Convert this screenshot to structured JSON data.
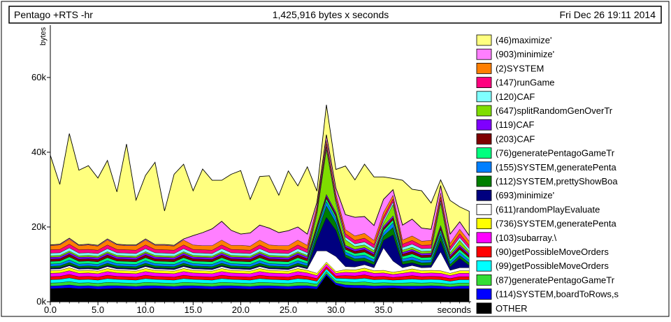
{
  "header": {
    "program": "Pentago +RTS -hr",
    "total": "1,425,916 bytes x seconds",
    "date": "Fri Dec 26 19:11 2014"
  },
  "chart_data": {
    "type": "area",
    "stacked": true,
    "ylabel": "bytes",
    "xlabel": "seconds",
    "xlim": [
      0,
      44.2
    ],
    "ylim": [
      0,
      74000
    ],
    "x_ticks": [
      {
        "value": 0,
        "label": "0.0"
      },
      {
        "value": 5,
        "label": "5.0"
      },
      {
        "value": 10,
        "label": "10.0"
      },
      {
        "value": 15,
        "label": "15.0"
      },
      {
        "value": 20,
        "label": "20.0"
      },
      {
        "value": 25,
        "label": "25.0"
      },
      {
        "value": 30,
        "label": "30.0"
      },
      {
        "value": 35,
        "label": "35.0"
      }
    ],
    "y_ticks": [
      {
        "value": 0,
        "label": "0k"
      },
      {
        "value": 20000,
        "label": "20k"
      },
      {
        "value": 40000,
        "label": "40k"
      },
      {
        "value": 60000,
        "label": "60k"
      }
    ],
    "legend_position": "right",
    "x": [
      0,
      1,
      2,
      3,
      4,
      5,
      6,
      7,
      8,
      9,
      10,
      11,
      12,
      13,
      14,
      15,
      16,
      17,
      18,
      19,
      20,
      21,
      22,
      23,
      24,
      25,
      26,
      27,
      28,
      29,
      30,
      31,
      32,
      33,
      34,
      35,
      36,
      37,
      38,
      39,
      40,
      41,
      42,
      43,
      44
    ],
    "series": [
      {
        "name": "OTHER",
        "color": "#000000",
        "values": [
          3500,
          3600,
          3700,
          3500,
          3600,
          3400,
          3500,
          3600,
          3500,
          3400,
          3500,
          3600,
          3500,
          3400,
          3500,
          3600,
          3500,
          3400,
          3500,
          3600,
          3500,
          3400,
          3500,
          3600,
          3500,
          3400,
          3500,
          3600,
          3400,
          7000,
          4500,
          3800,
          3700,
          3600,
          3500,
          3600,
          3700,
          3500,
          3400,
          3500,
          3600,
          3500,
          3400,
          3500,
          3500
        ]
      },
      {
        "name": "(114)SYSTEM,boardToRows,s",
        "color": "#0000ff",
        "values": [
          700,
          700,
          800,
          700,
          700,
          700,
          800,
          700,
          700,
          700,
          800,
          700,
          700,
          700,
          800,
          700,
          700,
          700,
          800,
          700,
          700,
          700,
          800,
          700,
          700,
          700,
          800,
          700,
          600,
          500,
          500,
          700,
          700,
          800,
          700,
          700,
          600,
          700,
          800,
          700,
          700,
          700,
          600,
          700,
          700
        ]
      },
      {
        "name": "(87)generatePentagoGameTr",
        "color": "#33dd33",
        "values": [
          800,
          800,
          900,
          800,
          800,
          800,
          900,
          800,
          800,
          800,
          900,
          800,
          800,
          800,
          900,
          800,
          800,
          800,
          900,
          800,
          800,
          800,
          900,
          800,
          800,
          800,
          900,
          800,
          700,
          600,
          600,
          800,
          800,
          900,
          800,
          800,
          700,
          800,
          900,
          800,
          800,
          800,
          700,
          800,
          800
        ]
      },
      {
        "name": "(99)getPossibleMoveOrders",
        "color": "#00ffff",
        "values": [
          900,
          900,
          1000,
          900,
          900,
          900,
          1000,
          900,
          900,
          900,
          1000,
          900,
          900,
          900,
          1000,
          900,
          900,
          900,
          1000,
          900,
          900,
          900,
          1000,
          900,
          900,
          900,
          1000,
          900,
          800,
          700,
          700,
          900,
          900,
          1000,
          900,
          900,
          800,
          900,
          1000,
          900,
          900,
          900,
          800,
          900,
          900
        ]
      },
      {
        "name": "(90)getPossibleMoveOrders",
        "color": "#ff0000",
        "values": [
          800,
          800,
          900,
          800,
          800,
          800,
          900,
          800,
          800,
          800,
          900,
          800,
          800,
          800,
          900,
          800,
          800,
          800,
          900,
          800,
          800,
          800,
          900,
          800,
          800,
          800,
          900,
          800,
          700,
          600,
          600,
          800,
          800,
          900,
          800,
          800,
          700,
          800,
          900,
          800,
          800,
          800,
          700,
          800,
          800
        ]
      },
      {
        "name": "(103)subarray.\\",
        "color": "#ff00ff",
        "values": [
          900,
          900,
          1000,
          900,
          900,
          900,
          1000,
          900,
          900,
          900,
          1000,
          900,
          900,
          900,
          1000,
          900,
          900,
          900,
          1000,
          900,
          900,
          900,
          1000,
          900,
          900,
          900,
          1000,
          900,
          800,
          700,
          700,
          900,
          900,
          1000,
          900,
          900,
          800,
          900,
          1000,
          900,
          900,
          900,
          800,
          900,
          900
        ]
      },
      {
        "name": "(736)SYSTEM,generatePenta",
        "color": "#ffff00",
        "values": [
          700,
          700,
          800,
          700,
          700,
          700,
          800,
          700,
          700,
          700,
          800,
          700,
          700,
          700,
          800,
          700,
          700,
          700,
          800,
          700,
          700,
          700,
          800,
          700,
          700,
          700,
          800,
          700,
          600,
          500,
          500,
          700,
          700,
          800,
          700,
          700,
          600,
          700,
          800,
          700,
          700,
          700,
          600,
          700,
          700
        ]
      },
      {
        "name": "(611)randomPlayEvaluate",
        "color": "#ffffff",
        "values": [
          400,
          400,
          500,
          400,
          400,
          400,
          500,
          400,
          400,
          400,
          500,
          400,
          400,
          400,
          500,
          400,
          400,
          400,
          500,
          400,
          400,
          400,
          500,
          400,
          400,
          400,
          500,
          400,
          6000,
          3000,
          4000,
          800,
          800,
          900,
          800,
          6000,
          3000,
          800,
          900,
          800,
          800,
          5000,
          800,
          800,
          800
        ]
      },
      {
        "name": "(693)minimize'",
        "color": "#00007f",
        "values": [
          300,
          300,
          300,
          300,
          300,
          300,
          300,
          300,
          300,
          300,
          300,
          300,
          300,
          300,
          300,
          300,
          300,
          300,
          300,
          300,
          300,
          300,
          300,
          300,
          300,
          300,
          300,
          300,
          3000,
          9000,
          7000,
          2500,
          1500,
          1000,
          800,
          2000,
          7000,
          900,
          700,
          600,
          600,
          3000,
          900,
          2500,
          600
        ]
      },
      {
        "name": "(112)SYSTEM,prettyShowBoa",
        "color": "#007f00",
        "values": [
          500,
          500,
          600,
          500,
          500,
          500,
          600,
          500,
          500,
          500,
          600,
          500,
          500,
          500,
          600,
          500,
          500,
          500,
          600,
          500,
          500,
          500,
          600,
          500,
          500,
          500,
          600,
          500,
          1500,
          3000,
          2000,
          700,
          700,
          800,
          700,
          1200,
          2000,
          700,
          800,
          700,
          700,
          1500,
          700,
          800,
          700
        ]
      },
      {
        "name": "(155)SYSTEM,generatePenta",
        "color": "#007fff",
        "values": [
          600,
          600,
          700,
          600,
          600,
          600,
          700,
          600,
          600,
          600,
          700,
          600,
          600,
          600,
          700,
          600,
          600,
          600,
          700,
          600,
          600,
          600,
          700,
          600,
          600,
          600,
          700,
          600,
          800,
          1200,
          1000,
          700,
          700,
          800,
          700,
          800,
          1200,
          700,
          800,
          700,
          700,
          800,
          700,
          800,
          700
        ]
      },
      {
        "name": "(76)generatePentagoGameTr",
        "color": "#00ff7f",
        "values": [
          700,
          700,
          800,
          700,
          700,
          700,
          800,
          700,
          700,
          700,
          800,
          700,
          700,
          700,
          800,
          700,
          700,
          700,
          800,
          700,
          700,
          700,
          800,
          700,
          700,
          700,
          800,
          700,
          600,
          800,
          700,
          700,
          700,
          800,
          700,
          700,
          800,
          700,
          800,
          700,
          700,
          700,
          700,
          800,
          700
        ]
      },
      {
        "name": "(203)CAF",
        "color": "#7f0000",
        "values": [
          600,
          600,
          700,
          600,
          600,
          600,
          700,
          600,
          600,
          600,
          700,
          600,
          600,
          600,
          700,
          600,
          600,
          600,
          700,
          600,
          600,
          600,
          700,
          600,
          600,
          600,
          700,
          600,
          500,
          600,
          600,
          600,
          600,
          700,
          600,
          600,
          600,
          600,
          700,
          600,
          600,
          600,
          600,
          700,
          600
        ]
      },
      {
        "name": "(119)CAF",
        "color": "#7f00ff",
        "values": [
          500,
          500,
          500,
          500,
          500,
          500,
          500,
          500,
          500,
          500,
          500,
          500,
          500,
          500,
          500,
          500,
          500,
          500,
          500,
          500,
          500,
          500,
          500,
          500,
          500,
          500,
          500,
          500,
          400,
          500,
          500,
          500,
          500,
          500,
          500,
          500,
          500,
          500,
          500,
          500,
          500,
          500,
          500,
          500,
          500
        ]
      },
      {
        "name": "(647)splitRandomGenOverTr",
        "color": "#7fdd00",
        "values": [
          400,
          400,
          400,
          400,
          400,
          400,
          400,
          400,
          400,
          400,
          400,
          400,
          400,
          400,
          400,
          400,
          400,
          400,
          400,
          400,
          400,
          400,
          400,
          400,
          400,
          400,
          400,
          400,
          3000,
          12000,
          2500,
          1500,
          800,
          700,
          600,
          900,
          3000,
          600,
          600,
          600,
          600,
          6000,
          600,
          1200,
          600
        ]
      },
      {
        "name": "(120)CAF",
        "color": "#7fffff",
        "values": [
          700,
          700,
          800,
          700,
          700,
          700,
          800,
          700,
          700,
          700,
          800,
          700,
          700,
          700,
          800,
          700,
          700,
          700,
          800,
          700,
          700,
          700,
          800,
          700,
          700,
          700,
          800,
          700,
          600,
          700,
          700,
          700,
          700,
          800,
          700,
          700,
          700,
          700,
          800,
          700,
          700,
          700,
          700,
          800,
          700
        ]
      },
      {
        "name": "(147)runGame",
        "color": "#ff007f",
        "values": [
          900,
          900,
          1000,
          900,
          900,
          900,
          1000,
          900,
          900,
          900,
          1000,
          900,
          900,
          900,
          1000,
          900,
          900,
          900,
          1000,
          900,
          900,
          900,
          1000,
          900,
          900,
          900,
          1000,
          900,
          700,
          800,
          800,
          900,
          900,
          1000,
          900,
          900,
          800,
          900,
          1000,
          900,
          900,
          900,
          800,
          1000,
          900
        ]
      },
      {
        "name": "(2)SYSTEM",
        "color": "#ff7f00",
        "values": [
          1100,
          1200,
          1300,
          1100,
          1200,
          1100,
          1300,
          1200,
          1100,
          1200,
          1300,
          1100,
          1200,
          1100,
          1300,
          1200,
          1100,
          1200,
          1300,
          1100,
          1200,
          1100,
          1300,
          1200,
          1100,
          1200,
          1300,
          1100,
          900,
          1000,
          1000,
          1100,
          1200,
          1300,
          1100,
          1200,
          1000,
          1100,
          1200,
          1100,
          1200,
          1100,
          1000,
          1200,
          1100
        ]
      },
      {
        "name": "(903)minimize'",
        "color": "#ff7fff",
        "values": [
          200,
          200,
          300,
          200,
          200,
          200,
          300,
          200,
          200,
          200,
          300,
          200,
          200,
          200,
          300,
          2500,
          3500,
          4500,
          5000,
          4000,
          3000,
          3500,
          4000,
          4500,
          3500,
          4000,
          3500,
          3000,
          1000,
          1500,
          1500,
          4000,
          5000,
          4500,
          4000,
          3500,
          1500,
          4000,
          4500,
          3500,
          3000,
          2000,
          2500,
          2000,
          1500
        ]
      },
      {
        "name": "(46)maximize'",
        "color": "#ffff7f",
        "values": [
          24000,
          16000,
          28000,
          20000,
          21000,
          18000,
          21000,
          14000,
          27000,
          12000,
          17000,
          22000,
          9000,
          19000,
          20000,
          12000,
          17000,
          13000,
          11000,
          15000,
          17000,
          9000,
          13000,
          14000,
          10000,
          16000,
          11000,
          18000,
          3000,
          8000,
          5000,
          13000,
          10000,
          14000,
          13000,
          6000,
          3000,
          12000,
          8000,
          10000,
          7000,
          1500,
          9000,
          4000,
          6500
        ]
      }
    ]
  },
  "legend": {
    "items": [
      {
        "label": "(46)maximize'",
        "color": "#ffff7f"
      },
      {
        "label": "(903)minimize'",
        "color": "#ff7fff"
      },
      {
        "label": "(2)SYSTEM",
        "color": "#ff7f00"
      },
      {
        "label": "(147)runGame",
        "color": "#ff007f"
      },
      {
        "label": "(120)CAF",
        "color": "#7fffff"
      },
      {
        "label": "(647)splitRandomGenOverTr",
        "color": "#7fdd00"
      },
      {
        "label": "(119)CAF",
        "color": "#7f00ff"
      },
      {
        "label": "(203)CAF",
        "color": "#7f0000"
      },
      {
        "label": "(76)generatePentagoGameTr",
        "color": "#00ff7f"
      },
      {
        "label": "(155)SYSTEM,generatePenta",
        "color": "#007fff"
      },
      {
        "label": "(112)SYSTEM,prettyShowBoa",
        "color": "#007f00"
      },
      {
        "label": "(693)minimize'",
        "color": "#00007f"
      },
      {
        "label": "(611)randomPlayEvaluate",
        "color": "#ffffff"
      },
      {
        "label": "(736)SYSTEM,generatePenta",
        "color": "#ffff00"
      },
      {
        "label": "(103)subarray.\\",
        "color": "#ff00ff"
      },
      {
        "label": "(90)getPossibleMoveOrders",
        "color": "#ff0000"
      },
      {
        "label": "(99)getPossibleMoveOrders",
        "color": "#00ffff"
      },
      {
        "label": "(87)generatePentagoGameTr",
        "color": "#33dd33"
      },
      {
        "label": "(114)SYSTEM,boardToRows,s",
        "color": "#0000ff"
      },
      {
        "label": "OTHER",
        "color": "#000000"
      }
    ]
  }
}
